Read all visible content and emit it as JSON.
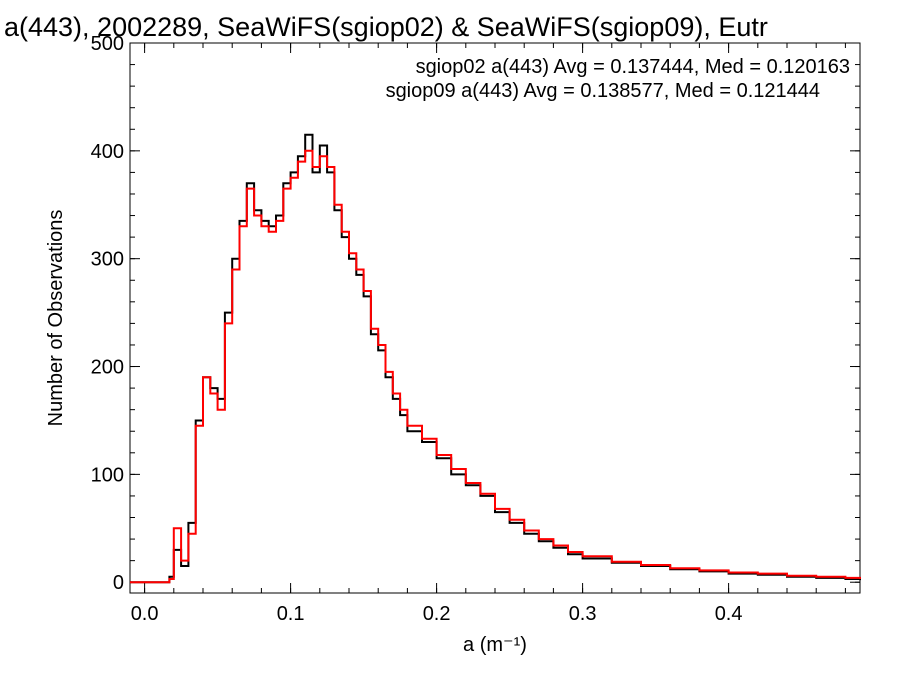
{
  "chart_data": {
    "type": "line",
    "title": "a(443), 2002289, SeaWiFS(sgiop02) & SeaWiFS(sgiop09), Eutr",
    "xlabel": "a (m⁻¹)",
    "ylabel": "Number of Observations",
    "xlim": [
      -0.01,
      0.49
    ],
    "ylim": [
      -10,
      500
    ],
    "xticks": [
      0.0,
      0.1,
      0.2,
      0.3,
      0.4
    ],
    "xtick_labels": [
      "0.0",
      "0.1",
      "0.2",
      "0.3",
      "0.4"
    ],
    "yticks": [
      0,
      100,
      200,
      300,
      400,
      500
    ],
    "ytick_labels": [
      "0",
      "100",
      "200",
      "300",
      "400",
      "500"
    ],
    "grid": false,
    "legend_placement": "top-right",
    "annotations": [
      {
        "text": "sgiop02 a(443) Avg = 0.137444, Med = 0.120163",
        "color": "#000000"
      },
      {
        "text": "sgiop09 a(443) Avg = 0.138577, Med = 0.121444",
        "color": "#ff0000"
      }
    ],
    "series": [
      {
        "name": "sgiop02",
        "color": "#000000",
        "x": [
          -0.01,
          0.0,
          0.01,
          0.017,
          0.02,
          0.025,
          0.03,
          0.035,
          0.04,
          0.045,
          0.05,
          0.055,
          0.06,
          0.065,
          0.07,
          0.075,
          0.08,
          0.085,
          0.09,
          0.095,
          0.1,
          0.105,
          0.11,
          0.115,
          0.12,
          0.125,
          0.13,
          0.135,
          0.14,
          0.145,
          0.15,
          0.155,
          0.16,
          0.165,
          0.17,
          0.175,
          0.18,
          0.19,
          0.2,
          0.21,
          0.22,
          0.23,
          0.24,
          0.25,
          0.26,
          0.27,
          0.28,
          0.29,
          0.3,
          0.32,
          0.34,
          0.36,
          0.38,
          0.4,
          0.42,
          0.44,
          0.46,
          0.48,
          0.49
        ],
        "values": [
          0,
          0,
          0,
          5,
          30,
          15,
          55,
          150,
          190,
          180,
          170,
          250,
          300,
          335,
          370,
          345,
          335,
          330,
          340,
          370,
          380,
          395,
          415,
          380,
          405,
          380,
          345,
          320,
          300,
          285,
          265,
          230,
          215,
          190,
          170,
          155,
          140,
          130,
          115,
          100,
          90,
          80,
          65,
          55,
          45,
          38,
          32,
          26,
          22,
          18,
          15,
          12,
          10,
          8,
          7,
          5,
          4,
          3,
          2
        ]
      },
      {
        "name": "sgiop09",
        "color": "#ff0000",
        "x": [
          -0.01,
          0.0,
          0.01,
          0.017,
          0.02,
          0.025,
          0.03,
          0.035,
          0.04,
          0.045,
          0.05,
          0.055,
          0.06,
          0.065,
          0.07,
          0.075,
          0.08,
          0.085,
          0.09,
          0.095,
          0.1,
          0.105,
          0.11,
          0.115,
          0.12,
          0.125,
          0.13,
          0.135,
          0.14,
          0.145,
          0.15,
          0.155,
          0.16,
          0.165,
          0.17,
          0.175,
          0.18,
          0.19,
          0.2,
          0.21,
          0.22,
          0.23,
          0.24,
          0.25,
          0.26,
          0.27,
          0.28,
          0.29,
          0.3,
          0.32,
          0.34,
          0.36,
          0.38,
          0.4,
          0.42,
          0.44,
          0.46,
          0.48,
          0.49
        ],
        "values": [
          0,
          0,
          0,
          3,
          50,
          20,
          45,
          145,
          190,
          175,
          160,
          240,
          290,
          330,
          365,
          340,
          330,
          325,
          335,
          365,
          375,
          390,
          400,
          385,
          395,
          385,
          350,
          325,
          305,
          290,
          270,
          235,
          220,
          195,
          175,
          160,
          145,
          133,
          118,
          105,
          92,
          82,
          68,
          58,
          48,
          40,
          34,
          28,
          24,
          19,
          16,
          13,
          11,
          9,
          8,
          6,
          5,
          4,
          3
        ]
      }
    ]
  }
}
